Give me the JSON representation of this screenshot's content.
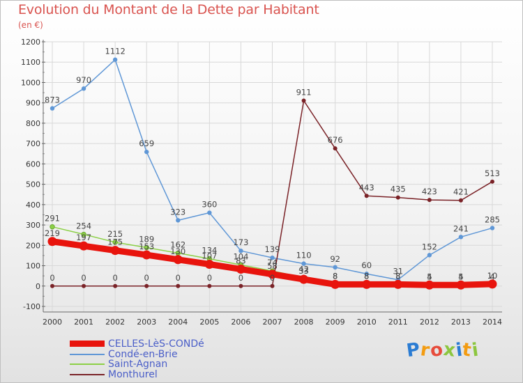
{
  "title": "Evolution du Montant de la Dette par Habitant",
  "subtitle": "(en €)",
  "logo_text": "Proxiti",
  "colors": {
    "title": "#d9534f",
    "legend_text": "#4a5ec8",
    "grid": "#d8d8d8",
    "axis": "#666666"
  },
  "chart_data": {
    "type": "line",
    "title": "Evolution du Montant de la Dette par Habitant",
    "ylabel": "(en €)",
    "x": [
      2000,
      2001,
      2002,
      2003,
      2004,
      2005,
      2006,
      2007,
      2008,
      2009,
      2010,
      2011,
      2012,
      2013,
      2014
    ],
    "ylim": [
      -100,
      1200
    ],
    "yticks": [
      -100,
      0,
      100,
      200,
      300,
      400,
      500,
      600,
      700,
      800,
      900,
      1000,
      1100,
      1200
    ],
    "grid": true,
    "legend_position": "bottom-left",
    "series": [
      {
        "name": "CELLES-LèS-CONDé",
        "color": "#e8140d",
        "values": [
          219,
          197,
          175,
          153,
          130,
          107,
          83,
          58,
          33,
          8,
          8,
          8,
          5,
          5,
          10
        ],
        "labels": [
          "219",
          "197",
          "175",
          "153",
          "130",
          "107",
          "83",
          "58",
          "33",
          "8",
          "8",
          "8",
          "5",
          "5",
          "10"
        ]
      },
      {
        "name": "Condé-en-Brie",
        "color": "#5f97d6",
        "values": [
          873,
          970,
          1112,
          659,
          323,
          360,
          173,
          139,
          110,
          92,
          60,
          31,
          152,
          241,
          285
        ],
        "labels": [
          "873",
          "970",
          "1112",
          "659",
          "323",
          "360",
          "173",
          "139",
          "110",
          "92",
          "60",
          "31",
          "152",
          "241",
          "285"
        ]
      },
      {
        "name": "Saint-Agnan",
        "color": "#8cd046",
        "values": [
          291,
          254,
          215,
          189,
          162,
          134,
          104,
          74,
          42,
          8,
          8,
          8,
          4,
          4,
          4
        ],
        "labels": [
          "291",
          "254",
          "215",
          "189",
          "162",
          "134",
          "104",
          "74",
          "42",
          "8",
          "8",
          "8",
          "4",
          "4",
          "4"
        ]
      },
      {
        "name": "Monthurel",
        "color": "#7a2227",
        "values": [
          0,
          0,
          0,
          0,
          0,
          0,
          0,
          0,
          911,
          676,
          443,
          435,
          423,
          421,
          513
        ],
        "labels": [
          "0",
          "0",
          "0",
          "0",
          "0",
          "0",
          "0",
          "0",
          "911",
          "676",
          "443",
          "435",
          "423",
          "421",
          "513"
        ]
      }
    ]
  }
}
